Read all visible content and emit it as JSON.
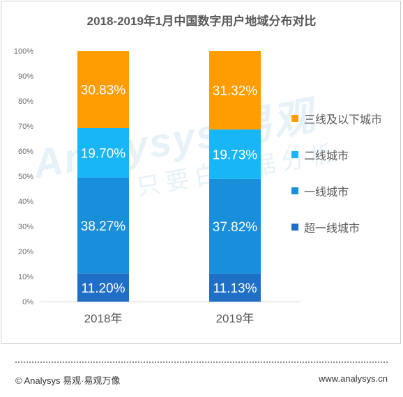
{
  "chart_data": {
    "type": "bar",
    "stacked": true,
    "title": "2018-2019年1月中国数字用户地域分布对比",
    "categories": [
      "2018年",
      "2019年"
    ],
    "series": [
      {
        "name": "超一线城市",
        "color": "#1f6fc6",
        "values": [
          11.2,
          11.13
        ],
        "labels": [
          "11.20%",
          "11.13%"
        ]
      },
      {
        "name": "一线城市",
        "color": "#1a8fd9",
        "values": [
          38.27,
          37.82
        ],
        "labels": [
          "38.27%",
          "37.82%"
        ]
      },
      {
        "name": "二线城市",
        "color": "#19b6f5",
        "values": [
          19.7,
          19.73
        ],
        "labels": [
          "19.70%",
          "19.73%"
        ]
      },
      {
        "name": "三线及以下城市",
        "color": "#ff9c00",
        "values": [
          30.83,
          31.32
        ],
        "labels": [
          "30.83%",
          "31.32%"
        ]
      }
    ],
    "yticks": [
      "0%",
      "10%",
      "20%",
      "30%",
      "40%",
      "50%",
      "60%",
      "70%",
      "80%",
      "90%",
      "100%"
    ],
    "ylim": [
      0,
      100
    ],
    "grid": false,
    "legend_position": "right"
  },
  "watermark": {
    "brand": "Analysys 易观",
    "slogan": "只要白数据分析"
  },
  "footer": {
    "left": "© Analysys 易观·易观万像",
    "right": "www.analysys.cn"
  }
}
